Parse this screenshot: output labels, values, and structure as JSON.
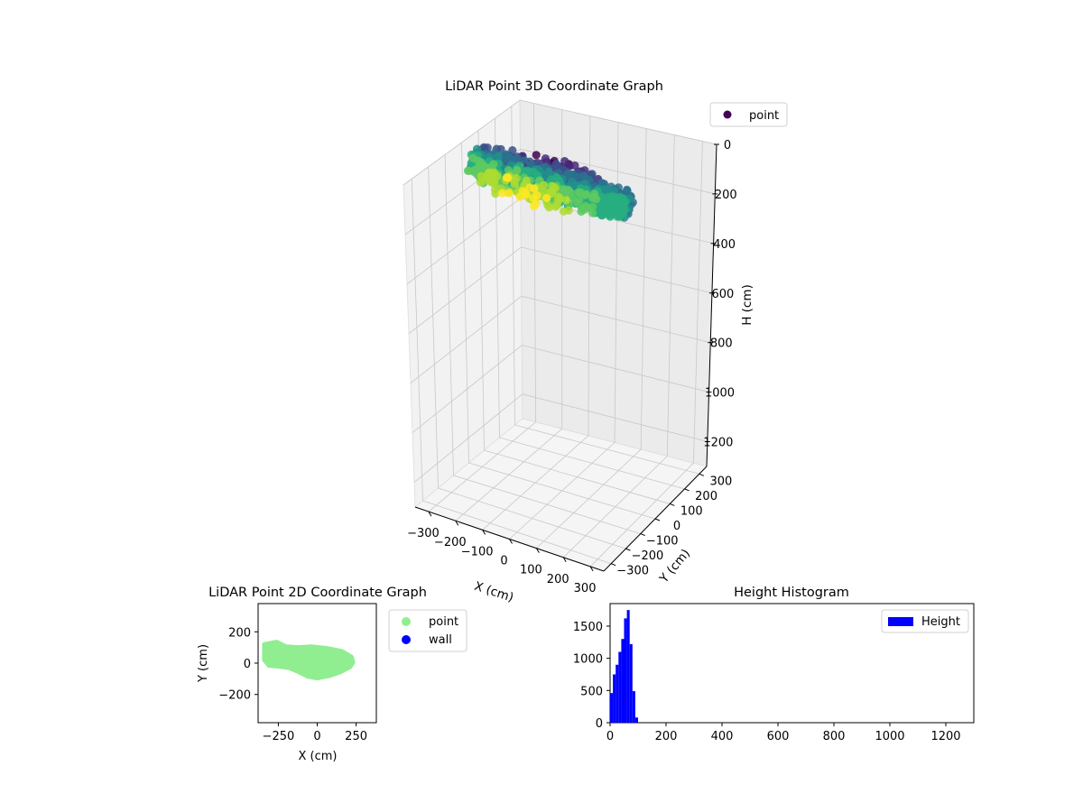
{
  "colors": {
    "viridis": [
      "#440154",
      "#472d7b",
      "#3b528b",
      "#2c728e",
      "#21918c",
      "#28ae80",
      "#5ec962",
      "#addc30",
      "#fde725"
    ],
    "point2d": "#90ee90",
    "wall": "#0000ff",
    "hist": "#0000ff"
  },
  "chart_data": [
    {
      "type": "scatter3d",
      "title": "LiDAR Point 3D Coordinate Graph",
      "xlabel": "X (cm)",
      "ylabel": "Y (cm)",
      "zlabel": "H (cm)",
      "xlim": [
        -350,
        350
      ],
      "ylim": [
        -350,
        350
      ],
      "zlim": [
        0,
        1300
      ],
      "z_inverted": true,
      "x_ticks": [
        -300,
        -200,
        -100,
        0,
        100,
        200,
        300
      ],
      "x_tick_labels": [
        "−300",
        "−200",
        "−100",
        "0",
        "100",
        "200",
        "300"
      ],
      "y_ticks": [
        -300,
        -200,
        -100,
        0,
        100,
        200,
        300
      ],
      "y_tick_labels": [
        "−300",
        "−200",
        "−100",
        "0",
        "100",
        "200",
        "300"
      ],
      "z_ticks": [
        0,
        200,
        400,
        600,
        800,
        1000,
        1200
      ],
      "z_tick_labels": [
        "0",
        "200",
        "400",
        "600",
        "800",
        "1000",
        "1200"
      ],
      "grid": true,
      "legend": {
        "entries": [
          "point"
        ],
        "position": "upper-right"
      },
      "cmap": "viridis",
      "point_cloud": {
        "x_range": [
          -300,
          220
        ],
        "y_range": [
          -100,
          120
        ],
        "h_range": [
          20,
          110
        ]
      }
    },
    {
      "type": "scatter",
      "title": "LiDAR Point 2D Coordinate Graph",
      "xlabel": "X (cm)",
      "ylabel": "Y (cm)",
      "xlim": [
        -380,
        380
      ],
      "ylim": [
        -380,
        380
      ],
      "x_ticks": [
        -250,
        0,
        250
      ],
      "x_tick_labels": [
        "−250",
        "0",
        "250"
      ],
      "y_ticks": [
        -200,
        0,
        200
      ],
      "y_tick_labels": [
        "−200",
        "0",
        "200"
      ],
      "legend": {
        "entries": [
          "point",
          "wall"
        ],
        "position": "outside-right"
      },
      "series": [
        {
          "name": "point",
          "outline": [
            [
              -340,
              120
            ],
            [
              -260,
              135
            ],
            [
              -200,
              105
            ],
            [
              -120,
              100
            ],
            [
              -40,
              105
            ],
            [
              60,
              95
            ],
            [
              160,
              75
            ],
            [
              220,
              40
            ],
            [
              230,
              5
            ],
            [
              210,
              -25
            ],
            [
              150,
              -55
            ],
            [
              80,
              -80
            ],
            [
              0,
              -95
            ],
            [
              -60,
              -85
            ],
            [
              -120,
              -55
            ],
            [
              -180,
              -30
            ],
            [
              -250,
              -20
            ],
            [
              -310,
              -15
            ],
            [
              -340,
              20
            ]
          ]
        },
        {
          "name": "wall",
          "points": []
        }
      ]
    },
    {
      "type": "histogram",
      "title": "Height Histogram",
      "xlim": [
        0,
        1300
      ],
      "ylim": [
        0,
        1850
      ],
      "x_ticks": [
        0,
        200,
        400,
        600,
        800,
        1000,
        1200
      ],
      "x_tick_labels": [
        "0",
        "200",
        "400",
        "600",
        "800",
        "1000",
        "1200"
      ],
      "y_ticks": [
        0,
        500,
        1000,
        1500
      ],
      "y_tick_labels": [
        "0",
        "500",
        "1000",
        "1500"
      ],
      "legend": {
        "entries": [
          "Height"
        ],
        "position": "upper-right"
      },
      "bin_edges": [
        0,
        10,
        20,
        30,
        40,
        50,
        60,
        70,
        80,
        90,
        100
      ],
      "counts": [
        460,
        750,
        900,
        1100,
        1300,
        1620,
        1750,
        1220,
        490,
        80
      ]
    }
  ]
}
